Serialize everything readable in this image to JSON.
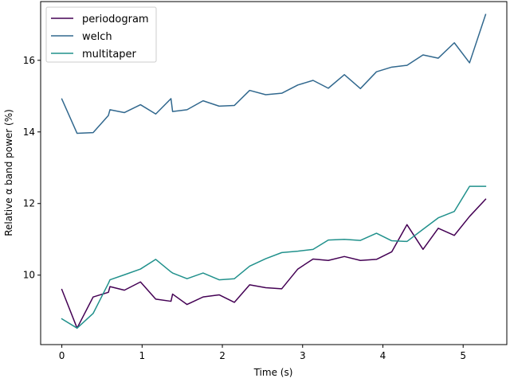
{
  "chart_data": {
    "type": "line",
    "title": "",
    "xlabel": "Time (s)",
    "ylabel": "Relative α band power (%)",
    "xlim": [
      -0.264,
      5.544
    ],
    "ylim": [
      8.06,
      17.64
    ],
    "xticks": [
      0,
      1,
      2,
      3,
      4,
      5
    ],
    "xtick_labels": [
      "0",
      "1",
      "2",
      "3",
      "4",
      "5"
    ],
    "yticks": [
      10,
      12,
      14,
      16
    ],
    "ytick_labels": [
      "10",
      "12",
      "14",
      "16"
    ],
    "grid": false,
    "legend_position": "top-left",
    "x": [
      0.0,
      0.19,
      0.39,
      0.58,
      0.6,
      0.78,
      0.98,
      1.17,
      1.36,
      1.38,
      1.56,
      1.76,
      1.96,
      2.15,
      2.34,
      2.54,
      2.74,
      2.94,
      3.13,
      3.32,
      3.52,
      3.72,
      3.92,
      4.11,
      4.3,
      4.5,
      4.69,
      4.89,
      5.08,
      5.28
    ],
    "series": [
      {
        "name": "periodogram",
        "color": "#440154",
        "values": [
          9.6,
          8.52,
          9.39,
          9.52,
          9.68,
          9.58,
          9.81,
          9.33,
          9.27,
          9.47,
          9.18,
          9.39,
          9.45,
          9.24,
          9.73,
          9.65,
          9.62,
          10.17,
          10.45,
          10.41,
          10.52,
          10.41,
          10.44,
          10.65,
          11.41,
          10.72,
          11.31,
          11.11,
          11.64,
          12.12
        ]
      },
      {
        "name": "welch",
        "color": "#31688e",
        "values": [
          14.92,
          13.96,
          13.98,
          14.46,
          14.62,
          14.54,
          14.76,
          14.5,
          14.93,
          14.57,
          14.62,
          14.87,
          14.72,
          14.74,
          15.16,
          15.04,
          15.08,
          15.31,
          15.44,
          15.22,
          15.6,
          15.21,
          15.68,
          15.81,
          15.86,
          16.15,
          16.06,
          16.49,
          15.93,
          17.28
        ]
      },
      {
        "name": "multitaper",
        "color": "#21918c",
        "values": [
          8.78,
          8.52,
          8.93,
          9.77,
          9.87,
          10.01,
          10.17,
          10.44,
          10.09,
          10.06,
          9.9,
          10.06,
          9.87,
          9.9,
          10.25,
          10.46,
          10.63,
          10.67,
          10.72,
          10.98,
          11.0,
          10.97,
          11.17,
          10.96,
          10.94,
          11.28,
          11.6,
          11.78,
          12.48,
          12.48
        ]
      }
    ]
  }
}
